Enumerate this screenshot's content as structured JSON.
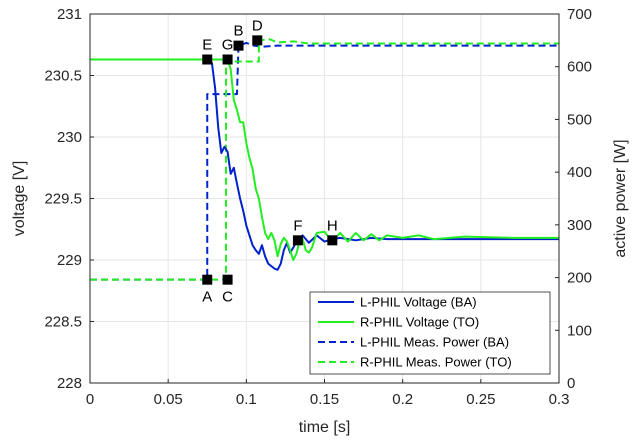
{
  "chart_data": {
    "type": "line",
    "xlabel": "time [s]",
    "ylabel_left": "voltage [V]",
    "ylabel_right": "active power [W]",
    "xlim": [
      0,
      0.3
    ],
    "ylim_left": [
      228,
      231
    ],
    "ylim_right": [
      0,
      700
    ],
    "x_ticks": [
      "0",
      "0.05",
      "0.1",
      "0.15",
      "0.2",
      "0.25",
      "0.3"
    ],
    "y_left_ticks": [
      "228",
      "228.5",
      "229",
      "229.5",
      "230",
      "230.5",
      "231"
    ],
    "y_right_ticks": [
      "0",
      "100",
      "200",
      "300",
      "400",
      "500",
      "600",
      "700"
    ],
    "grid": true,
    "legend_position": "bottom-right",
    "colors": {
      "L-PHIL": "#0022cc",
      "R-PHIL": "#22ee22",
      "marker": "#000000",
      "grid": "#e6e6e6"
    },
    "series": [
      {
        "name": "L-PHIL Voltage (BA)",
        "axis": "left",
        "style": "solid",
        "color_key": "L-PHIL",
        "points": [
          [
            0,
            230.63
          ],
          [
            0.076,
            230.63
          ],
          [
            0.078,
            230.6
          ],
          [
            0.08,
            230.4
          ],
          [
            0.082,
            230.08
          ],
          [
            0.084,
            229.87
          ],
          [
            0.086,
            229.92
          ],
          [
            0.088,
            229.88
          ],
          [
            0.09,
            229.7
          ],
          [
            0.092,
            229.75
          ],
          [
            0.094,
            229.62
          ],
          [
            0.096,
            229.5
          ],
          [
            0.098,
            229.4
          ],
          [
            0.1,
            229.28
          ],
          [
            0.102,
            229.2
          ],
          [
            0.104,
            229.12
          ],
          [
            0.106,
            229.08
          ],
          [
            0.108,
            229.05
          ],
          [
            0.11,
            229.12
          ],
          [
            0.112,
            229.03
          ],
          [
            0.114,
            228.97
          ],
          [
            0.116,
            228.95
          ],
          [
            0.118,
            228.93
          ],
          [
            0.12,
            228.92
          ],
          [
            0.122,
            228.97
          ],
          [
            0.124,
            229.08
          ],
          [
            0.126,
            229.14
          ],
          [
            0.128,
            229.06
          ],
          [
            0.13,
            229.1
          ],
          [
            0.133,
            229.17
          ],
          [
            0.136,
            229.2
          ],
          [
            0.14,
            229.14
          ],
          [
            0.145,
            229.2
          ],
          [
            0.15,
            229.15
          ],
          [
            0.155,
            229.17
          ],
          [
            0.16,
            229.18
          ],
          [
            0.17,
            229.16
          ],
          [
            0.18,
            229.18
          ],
          [
            0.19,
            229.17
          ],
          [
            0.2,
            229.17
          ],
          [
            0.25,
            229.17
          ],
          [
            0.3,
            229.17
          ]
        ]
      },
      {
        "name": "R-PHIL Voltage (TO)",
        "axis": "left",
        "style": "solid",
        "color_key": "R-PHIL",
        "points": [
          [
            0,
            230.63
          ],
          [
            0.088,
            230.63
          ],
          [
            0.09,
            230.55
          ],
          [
            0.092,
            230.3
          ],
          [
            0.094,
            230.22
          ],
          [
            0.096,
            230.12
          ],
          [
            0.098,
            230.12
          ],
          [
            0.1,
            229.95
          ],
          [
            0.102,
            229.83
          ],
          [
            0.104,
            229.74
          ],
          [
            0.106,
            229.58
          ],
          [
            0.108,
            229.5
          ],
          [
            0.11,
            229.35
          ],
          [
            0.112,
            229.22
          ],
          [
            0.114,
            229.17
          ],
          [
            0.116,
            229.22
          ],
          [
            0.118,
            229.16
          ],
          [
            0.12,
            229.03
          ],
          [
            0.122,
            229.13
          ],
          [
            0.124,
            229.18
          ],
          [
            0.126,
            229.15
          ],
          [
            0.128,
            229.08
          ],
          [
            0.13,
            229.0
          ],
          [
            0.132,
            229.05
          ],
          [
            0.134,
            229.15
          ],
          [
            0.136,
            229.17
          ],
          [
            0.138,
            229.08
          ],
          [
            0.14,
            229.06
          ],
          [
            0.142,
            229.1
          ],
          [
            0.145,
            229.22
          ],
          [
            0.15,
            229.23
          ],
          [
            0.155,
            229.15
          ],
          [
            0.16,
            229.22
          ],
          [
            0.165,
            229.15
          ],
          [
            0.17,
            229.22
          ],
          [
            0.175,
            229.16
          ],
          [
            0.18,
            229.21
          ],
          [
            0.185,
            229.16
          ],
          [
            0.19,
            229.2
          ],
          [
            0.2,
            229.18
          ],
          [
            0.21,
            229.2
          ],
          [
            0.22,
            229.17
          ],
          [
            0.24,
            229.19
          ],
          [
            0.27,
            229.18
          ],
          [
            0.3,
            229.18
          ]
        ]
      },
      {
        "name": "L-PHIL Meas. Power (BA)",
        "axis": "right",
        "style": "dashed",
        "color_key": "L-PHIL",
        "points": [
          [
            0,
            196
          ],
          [
            0.075,
            196
          ],
          [
            0.075,
            548
          ],
          [
            0.08,
            548
          ],
          [
            0.08,
            548
          ],
          [
            0.09,
            548
          ],
          [
            0.09,
            548
          ],
          [
            0.094,
            548
          ],
          [
            0.095,
            640
          ],
          [
            0.1,
            645
          ],
          [
            0.105,
            640
          ],
          [
            0.11,
            638
          ],
          [
            0.12,
            640
          ],
          [
            0.3,
            640
          ]
        ]
      },
      {
        "name": "R-PHIL Meas. Power (TO)",
        "axis": "right",
        "style": "dashed",
        "color_key": "R-PHIL",
        "points": [
          [
            0,
            196
          ],
          [
            0.087,
            196
          ],
          [
            0.087,
            610
          ],
          [
            0.1,
            610
          ],
          [
            0.108,
            610
          ],
          [
            0.108,
            650
          ],
          [
            0.115,
            652
          ],
          [
            0.12,
            646
          ],
          [
            0.13,
            648
          ],
          [
            0.14,
            644
          ],
          [
            0.3,
            644
          ]
        ]
      }
    ],
    "markers": [
      {
        "label": "A",
        "x": 0.075,
        "y": 196,
        "axis": "right",
        "label_pos": "below"
      },
      {
        "label": "C",
        "x": 0.088,
        "y": 196,
        "axis": "right",
        "label_pos": "below"
      },
      {
        "label": "E",
        "x": 0.075,
        "y": 230.63,
        "axis": "left",
        "label_pos": "above"
      },
      {
        "label": "G",
        "x": 0.088,
        "y": 230.63,
        "axis": "left",
        "label_pos": "above"
      },
      {
        "label": "B",
        "x": 0.095,
        "y": 640,
        "axis": "right",
        "label_pos": "above"
      },
      {
        "label": "D",
        "x": 0.107,
        "y": 650,
        "axis": "right",
        "label_pos": "above"
      },
      {
        "label": "F",
        "x": 0.133,
        "y": 229.16,
        "axis": "left",
        "label_pos": "above"
      },
      {
        "label": "H",
        "x": 0.155,
        "y": 229.16,
        "axis": "left",
        "label_pos": "above"
      }
    ]
  }
}
